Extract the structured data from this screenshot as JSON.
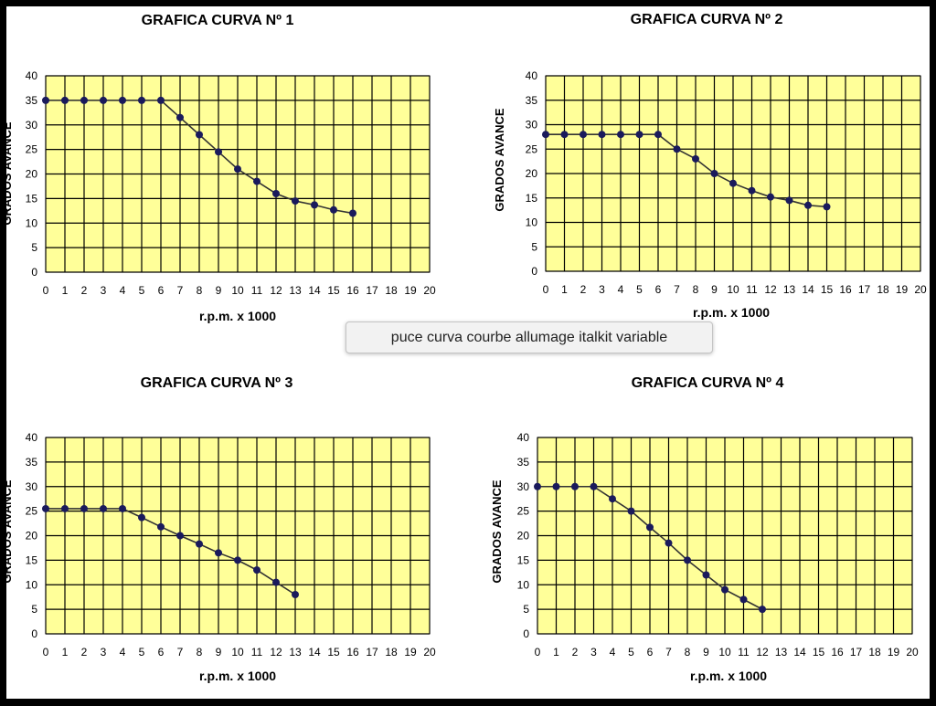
{
  "tooltip": {
    "text": "puce curva courbe allumage italkit variable"
  },
  "colors": {
    "plot_bg": "#ffff99",
    "grid": "#000000",
    "line": "#333333",
    "marker": "#1a1a5c",
    "border": "#000000"
  },
  "chart_data": [
    {
      "type": "line",
      "title": "GRAFICA CURVA Nº 1",
      "xlabel": "r.p.m. x 1000",
      "ylabel": "GRADOS AVANCE",
      "xlim": [
        0,
        20
      ],
      "ylim": [
        0,
        40
      ],
      "x_ticks": [
        "0",
        "1",
        "2",
        "3",
        "4",
        "5",
        "6",
        "7",
        "8",
        "9",
        "10",
        "11",
        "12",
        "13",
        "14",
        "15",
        "16",
        "17",
        "18",
        "19",
        "20"
      ],
      "y_ticks": [
        "0",
        "5",
        "10",
        "15",
        "20",
        "25",
        "30",
        "35",
        "40"
      ],
      "grid": true,
      "series": [
        {
          "x": [
            0,
            1,
            2,
            3,
            4,
            5,
            6,
            7,
            8,
            9,
            10,
            11,
            12,
            13,
            14,
            15,
            16
          ],
          "y": [
            35,
            35,
            35,
            35,
            35,
            35,
            35,
            31.5,
            28,
            24.5,
            21,
            18.5,
            16,
            14.5,
            13.7,
            12.7,
            12
          ]
        }
      ]
    },
    {
      "type": "line",
      "title": "GRAFICA CURVA Nº 2",
      "xlabel": "r.p.m. x 1000",
      "ylabel": "GRADOS AVANCE",
      "xlim": [
        0,
        20
      ],
      "ylim": [
        0,
        40
      ],
      "x_ticks": [
        "0",
        "1",
        "2",
        "3",
        "4",
        "5",
        "6",
        "7",
        "8",
        "9",
        "10",
        "11",
        "12",
        "13",
        "14",
        "15",
        "16",
        "17",
        "18",
        "19",
        "20"
      ],
      "y_ticks": [
        "0",
        "5",
        "10",
        "15",
        "20",
        "25",
        "30",
        "35",
        "40"
      ],
      "grid": true,
      "series": [
        {
          "x": [
            0,
            1,
            2,
            3,
            4,
            5,
            6,
            7,
            8,
            9,
            10,
            11,
            12,
            13,
            14,
            15
          ],
          "y": [
            28,
            28,
            28,
            28,
            28,
            28,
            28,
            25,
            23,
            20,
            18,
            16.5,
            15.2,
            14.5,
            13.5,
            13.2
          ]
        }
      ]
    },
    {
      "type": "line",
      "title": "GRAFICA CURVA Nº 3",
      "xlabel": "r.p.m. x 1000",
      "ylabel": "GRADOS AVANCE",
      "xlim": [
        0,
        20
      ],
      "ylim": [
        0,
        40
      ],
      "x_ticks": [
        "0",
        "1",
        "2",
        "3",
        "4",
        "5",
        "6",
        "7",
        "8",
        "9",
        "10",
        "11",
        "12",
        "13",
        "14",
        "15",
        "16",
        "17",
        "18",
        "19",
        "20"
      ],
      "y_ticks": [
        "0",
        "5",
        "10",
        "15",
        "20",
        "25",
        "30",
        "35",
        "40"
      ],
      "grid": true,
      "series": [
        {
          "x": [
            0,
            1,
            2,
            3,
            4,
            5,
            6,
            7,
            8,
            9,
            10,
            11,
            12,
            13
          ],
          "y": [
            25.5,
            25.5,
            25.5,
            25.5,
            25.5,
            23.7,
            21.8,
            20,
            18.3,
            16.5,
            15,
            13,
            10.5,
            8
          ]
        }
      ]
    },
    {
      "type": "line",
      "title": "GRAFICA CURVA Nº 4",
      "xlabel": "r.p.m. x 1000",
      "ylabel": "GRADOS AVANCE",
      "xlim": [
        0,
        20
      ],
      "ylim": [
        0,
        40
      ],
      "x_ticks": [
        "0",
        "1",
        "2",
        "3",
        "4",
        "5",
        "6",
        "7",
        "8",
        "9",
        "10",
        "11",
        "12",
        "13",
        "14",
        "15",
        "16",
        "17",
        "18",
        "19",
        "20"
      ],
      "y_ticks": [
        "0",
        "5",
        "10",
        "15",
        "20",
        "25",
        "30",
        "35",
        "40"
      ],
      "grid": true,
      "series": [
        {
          "x": [
            0,
            1,
            2,
            3,
            4,
            5,
            6,
            7,
            8,
            9,
            10,
            11,
            12
          ],
          "y": [
            30,
            30,
            30,
            30,
            27.5,
            25,
            21.7,
            18.5,
            15,
            12,
            9,
            7,
            5
          ]
        }
      ]
    }
  ]
}
